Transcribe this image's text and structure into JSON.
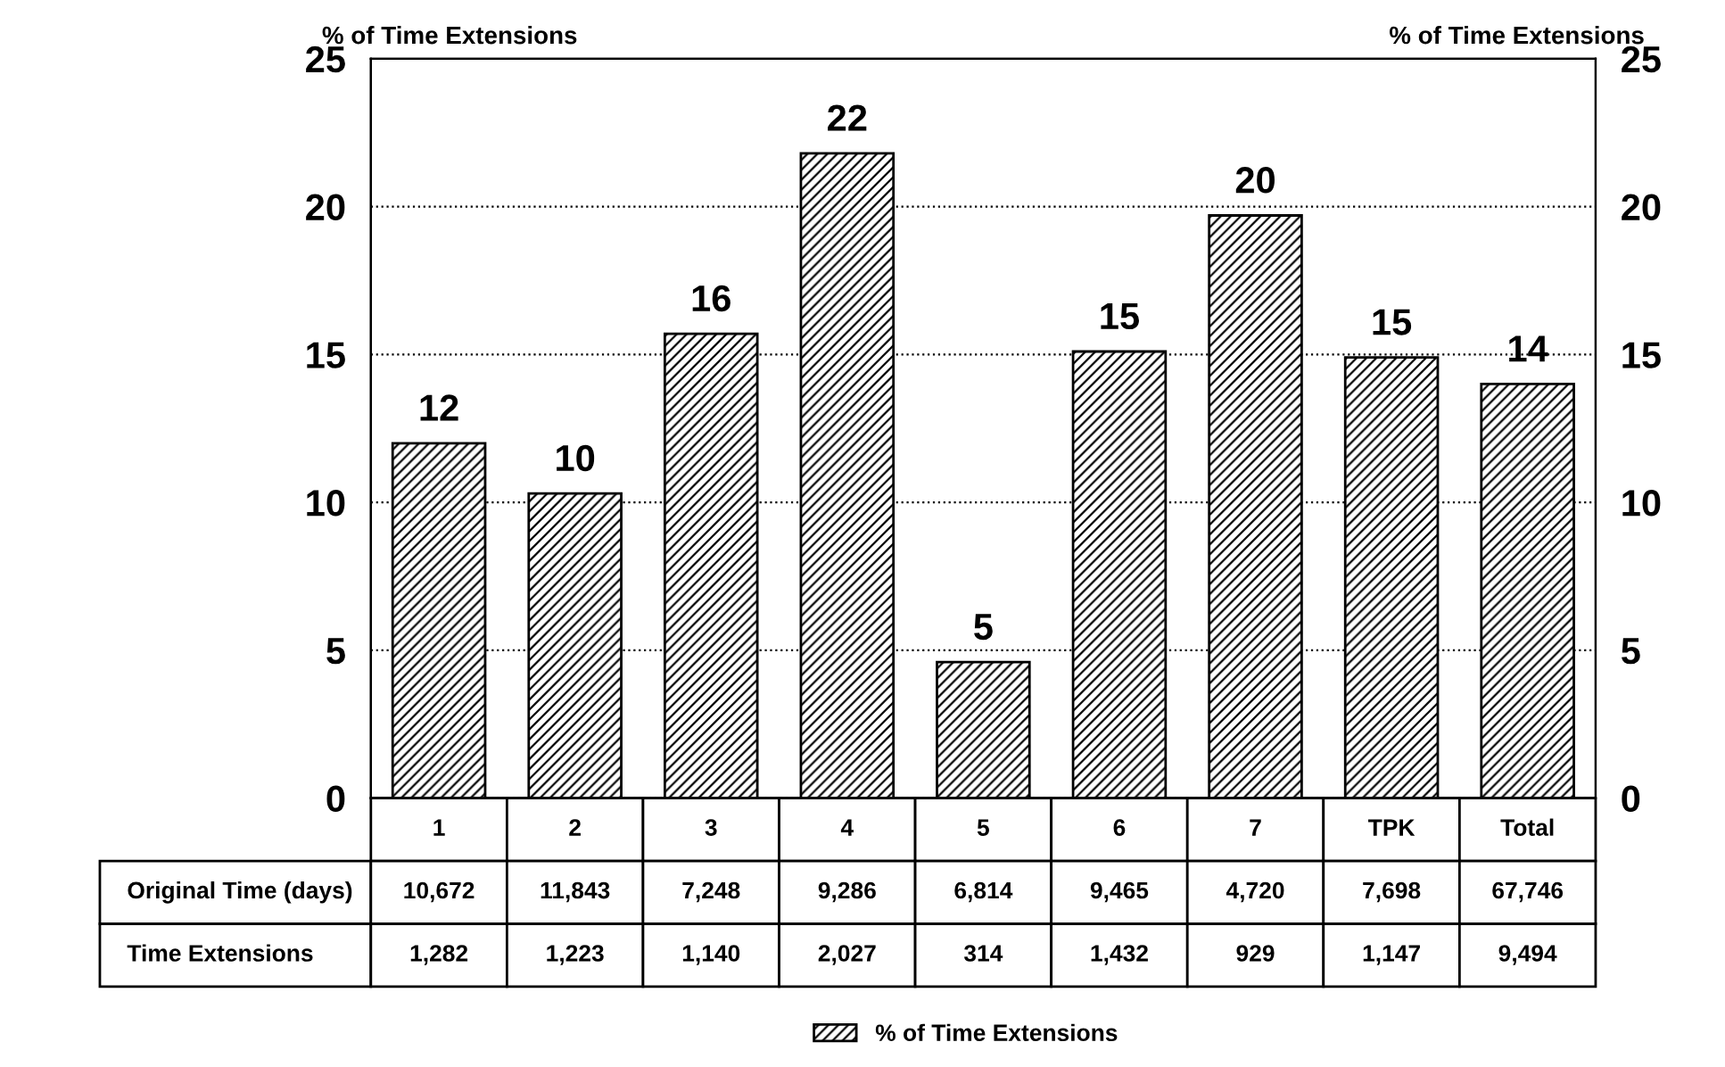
{
  "chart_data": {
    "type": "bar",
    "ylabel": "% of Time Extensions",
    "y2label": "% of Time Extensions",
    "categories": [
      "1",
      "2",
      "3",
      "4",
      "5",
      "6",
      "7",
      "TPK",
      "Total"
    ],
    "series": [
      {
        "name": "% of Time Extensions",
        "color": "#000000",
        "values": [
          12.0,
          10.3,
          15.7,
          21.8,
          4.6,
          15.1,
          19.7,
          14.9,
          14.0
        ],
        "value_labels": [
          "12",
          "10",
          "16",
          "22",
          "5",
          "15",
          "20",
          "15",
          "14"
        ]
      }
    ],
    "ylim": [
      0,
      25
    ],
    "yticks": [
      0,
      5,
      10,
      15,
      20,
      25
    ],
    "y2lim": [
      0,
      25
    ],
    "y2ticks": [
      0,
      5,
      10,
      15,
      20,
      25
    ],
    "grid": "y",
    "legend": "bottom",
    "annotations": [
      "Original Time (days)",
      "10,672",
      "11,843",
      "7,248",
      "9,286",
      "6,814",
      "9,465",
      "4,720",
      "7,698",
      "67,746",
      "Time Extensions",
      "1,282",
      "1,223",
      "1,140",
      "2,027",
      "314",
      "1,432",
      "929",
      "1,147",
      "9,494"
    ]
  }
}
